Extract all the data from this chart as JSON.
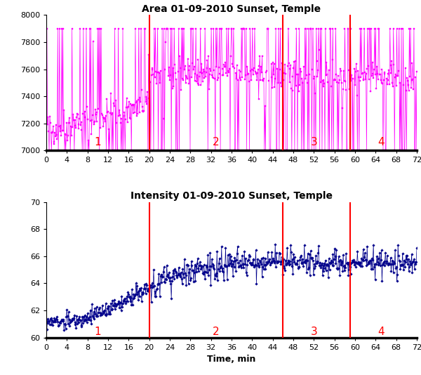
{
  "title1": "Area 01-09-2010 Sunset, Temple",
  "title2": "Intensity 01-09-2010 Sunset, Temple",
  "xlabel": "Time, min",
  "area_ylim": [
    7000,
    8000
  ],
  "intensity_ylim": [
    60,
    70
  ],
  "area_yticks": [
    7000,
    7200,
    7400,
    7600,
    7800,
    8000
  ],
  "intensity_yticks": [
    60,
    62,
    64,
    66,
    68,
    70
  ],
  "xticks": [
    0,
    4,
    8,
    12,
    16,
    20,
    24,
    28,
    32,
    36,
    40,
    44,
    48,
    52,
    56,
    60,
    64,
    68,
    72
  ],
  "xlim": [
    0,
    72
  ],
  "vlines": [
    20,
    46,
    59
  ],
  "vline_color": "red",
  "segment_labels": [
    {
      "text": "1",
      "x": 10,
      "color": "red"
    },
    {
      "text": "2",
      "x": 33,
      "color": "red"
    },
    {
      "text": "3",
      "x": 52,
      "color": "red"
    },
    {
      "text": "4",
      "x": 65,
      "color": "red"
    }
  ],
  "area_color": "#FF00FF",
  "intensity_color": "#00008B",
  "title_fontsize": 10,
  "label_fontsize": 9,
  "tick_fontsize": 8,
  "segment_fontsize": 11,
  "seed": 42,
  "n_points": 650,
  "time_max": 72
}
